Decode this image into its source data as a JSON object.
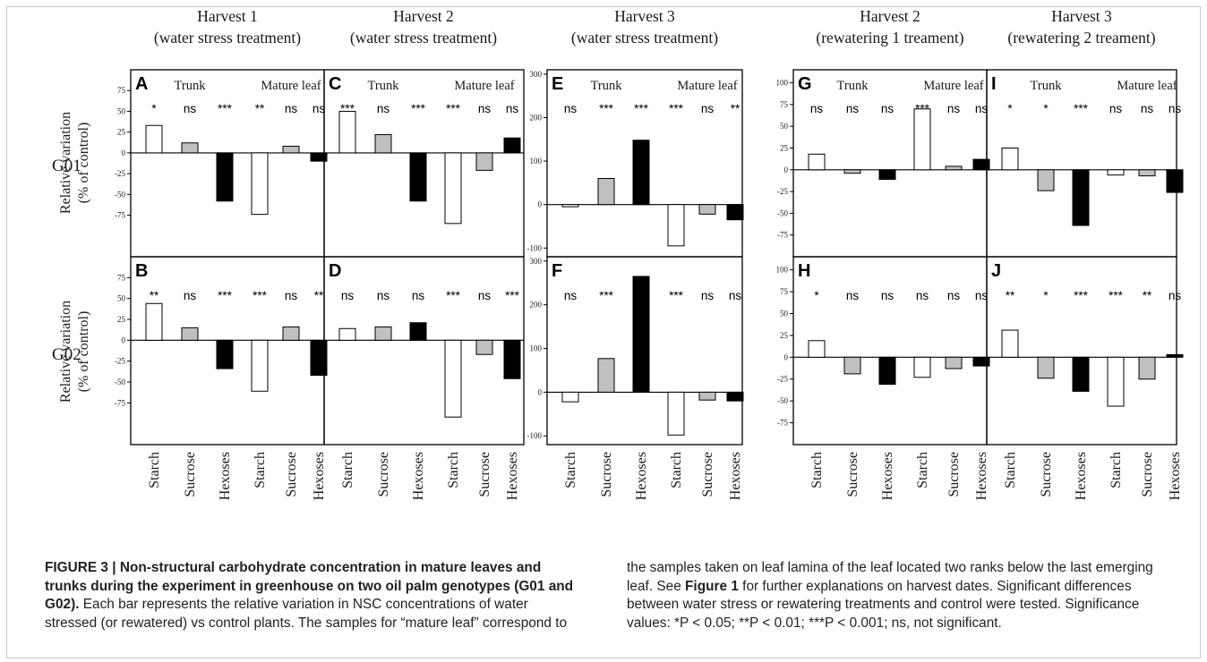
{
  "figure": {
    "column_titles": [
      [
        "Harvest 1",
        "(water stress treatment)"
      ],
      [
        "Harvest 2",
        "(water stress treatment)"
      ],
      [
        "Harvest 3",
        "(water stress treatment)"
      ],
      [
        "Harvest 2",
        "(rewatering 1 treament)"
      ],
      [
        "Harvest 3",
        "(rewatering 2 treament)"
      ]
    ],
    "row_labels": [
      "G01",
      "G02"
    ],
    "y_axis_label": [
      "Relative variation",
      "(% of control)"
    ],
    "group_labels": [
      "Trunk",
      "Mature leaf"
    ],
    "categories": [
      "Starch",
      "Sucrose",
      "Hexoses",
      "Starch",
      "Sucrose",
      "Hexoses"
    ],
    "bar_colors": [
      "#ffffff",
      "#c0c0c0",
      "#000000"
    ]
  },
  "chart_data": [
    {
      "type": "bar",
      "panel": "A",
      "genotype": "G01",
      "harvest": "Harvest 1",
      "treatment": "water stress treatment",
      "ylim": [
        -125,
        100
      ],
      "yticks": [
        -75,
        -50,
        -25,
        0,
        25,
        50,
        75
      ],
      "categories": [
        "Starch",
        "Sucrose",
        "Hexoses",
        "Starch",
        "Sucrose",
        "Hexoses"
      ],
      "groups": [
        "Trunk",
        "Trunk",
        "Trunk",
        "Mature leaf",
        "Mature leaf",
        "Mature leaf"
      ],
      "values": [
        33,
        12,
        -58,
        -74,
        8,
        -10
      ],
      "significance": [
        "*",
        "ns",
        "***",
        "**",
        "ns",
        "ns"
      ]
    },
    {
      "type": "bar",
      "panel": "B",
      "genotype": "G02",
      "harvest": "Harvest 1",
      "treatment": "water stress treatment",
      "ylim": [
        -125,
        100
      ],
      "yticks": [
        -75,
        -50,
        -25,
        0,
        25,
        50,
        75
      ],
      "categories": [
        "Starch",
        "Sucrose",
        "Hexoses",
        "Starch",
        "Sucrose",
        "Hexoses"
      ],
      "groups": [
        "Trunk",
        "Trunk",
        "Trunk",
        "Mature leaf",
        "Mature leaf",
        "Mature leaf"
      ],
      "values": [
        44,
        15,
        -34,
        -61,
        16,
        -42
      ],
      "significance": [
        "**",
        "ns",
        "***",
        "***",
        "ns",
        "**"
      ]
    },
    {
      "type": "bar",
      "panel": "C",
      "genotype": "G01",
      "harvest": "Harvest 2",
      "treatment": "water stress treatment",
      "ylim": [
        -125,
        100
      ],
      "yticks": [
        -75,
        -50,
        -25,
        0,
        25,
        50,
        75
      ],
      "categories": [
        "Starch",
        "Sucrose",
        "Hexoses",
        "Starch",
        "Sucrose",
        "Hexoses"
      ],
      "groups": [
        "Trunk",
        "Trunk",
        "Trunk",
        "Mature leaf",
        "Mature leaf",
        "Mature leaf"
      ],
      "values": [
        50,
        22,
        -58,
        -85,
        -21,
        18
      ],
      "significance": [
        "***",
        "ns",
        "***",
        "***",
        "ns",
        "ns"
      ]
    },
    {
      "type": "bar",
      "panel": "D",
      "genotype": "G02",
      "harvest": "Harvest 2",
      "treatment": "water stress treatment",
      "ylim": [
        -125,
        100
      ],
      "yticks": [
        -75,
        -50,
        -25,
        0,
        25,
        50,
        75
      ],
      "categories": [
        "Starch",
        "Sucrose",
        "Hexoses",
        "Starch",
        "Sucrose",
        "Hexoses"
      ],
      "groups": [
        "Trunk",
        "Trunk",
        "Trunk",
        "Mature leaf",
        "Mature leaf",
        "Mature leaf"
      ],
      "values": [
        14,
        16,
        21,
        -92,
        -17,
        -46
      ],
      "significance": [
        "ns",
        "ns",
        "ns",
        "***",
        "ns",
        "***"
      ]
    },
    {
      "type": "bar",
      "panel": "E",
      "genotype": "G01",
      "harvest": "Harvest 3",
      "treatment": "water stress treatment",
      "ylim": [
        -120,
        310
      ],
      "yticks": [
        -100,
        0,
        100,
        200,
        300
      ],
      "categories": [
        "Starch",
        "Sucrose",
        "Hexoses",
        "Starch",
        "Sucrose",
        "Hexoses"
      ],
      "groups": [
        "Trunk",
        "Trunk",
        "Trunk",
        "Mature leaf",
        "Mature leaf",
        "Mature leaf"
      ],
      "values": [
        -5,
        60,
        148,
        -95,
        -22,
        -35
      ],
      "significance": [
        "ns",
        "***",
        "***",
        "***",
        "ns",
        "**"
      ]
    },
    {
      "type": "bar",
      "panel": "F",
      "genotype": "G02",
      "harvest": "Harvest 3",
      "treatment": "water stress treatment",
      "ylim": [
        -120,
        310
      ],
      "yticks": [
        -100,
        0,
        100,
        200,
        300
      ],
      "categories": [
        "Starch",
        "Sucrose",
        "Hexoses",
        "Starch",
        "Sucrose",
        "Hexoses"
      ],
      "groups": [
        "Trunk",
        "Trunk",
        "Trunk",
        "Mature leaf",
        "Mature leaf",
        "Mature leaf"
      ],
      "values": [
        -22,
        77,
        265,
        -98,
        -18,
        -20
      ],
      "significance": [
        "ns",
        "***",
        "***",
        "***",
        "ns",
        "ns"
      ]
    },
    {
      "type": "bar",
      "panel": "G",
      "genotype": "G01",
      "harvest": "Harvest 2",
      "treatment": "rewatering 1 treament",
      "ylim": [
        -100,
        115
      ],
      "yticks": [
        -75,
        -50,
        -25,
        0,
        25,
        50,
        75,
        100
      ],
      "categories": [
        "Starch",
        "Sucrose",
        "Hexoses",
        "Starch",
        "Sucrose",
        "Hexoses"
      ],
      "groups": [
        "Trunk",
        "Trunk",
        "Trunk",
        "Mature leaf",
        "Mature leaf",
        "Mature leaf"
      ],
      "values": [
        18,
        -4,
        -11,
        70,
        4,
        12
      ],
      "significance": [
        "ns",
        "ns",
        "ns",
        "***",
        "ns",
        "ns"
      ]
    },
    {
      "type": "bar",
      "panel": "H",
      "genotype": "G02",
      "harvest": "Harvest 2",
      "treatment": "rewatering 1 treament",
      "ylim": [
        -100,
        115
      ],
      "yticks": [
        -75,
        -50,
        -25,
        0,
        25,
        50,
        75,
        100
      ],
      "categories": [
        "Starch",
        "Sucrose",
        "Hexoses",
        "Starch",
        "Sucrose",
        "Hexoses"
      ],
      "groups": [
        "Trunk",
        "Trunk",
        "Trunk",
        "Mature leaf",
        "Mature leaf",
        "Mature leaf"
      ],
      "values": [
        19,
        -19,
        -31,
        -23,
        -13,
        -10
      ],
      "significance": [
        "*",
        "ns",
        "ns",
        "ns",
        "ns",
        "ns"
      ]
    },
    {
      "type": "bar",
      "panel": "I",
      "genotype": "G01",
      "harvest": "Harvest 3",
      "treatment": "rewatering 2 treament",
      "ylim": [
        -100,
        115
      ],
      "yticks": [
        -75,
        -50,
        -25,
        0,
        25,
        50,
        75,
        100
      ],
      "categories": [
        "Starch",
        "Sucrose",
        "Hexoses",
        "Starch",
        "Sucrose",
        "Hexoses"
      ],
      "groups": [
        "Trunk",
        "Trunk",
        "Trunk",
        "Mature leaf",
        "Mature leaf",
        "Mature leaf"
      ],
      "values": [
        25,
        -24,
        -64,
        -6,
        -7,
        -26
      ],
      "significance": [
        "*",
        "*",
        "***",
        "ns",
        "ns",
        "ns"
      ]
    },
    {
      "type": "bar",
      "panel": "J",
      "genotype": "G02",
      "harvest": "Harvest 3",
      "treatment": "rewatering 2 treament",
      "ylim": [
        -100,
        115
      ],
      "yticks": [
        -75,
        -50,
        -25,
        0,
        25,
        50,
        75,
        100
      ],
      "categories": [
        "Starch",
        "Sucrose",
        "Hexoses",
        "Starch",
        "Sucrose",
        "Hexoses"
      ],
      "groups": [
        "Trunk",
        "Trunk",
        "Trunk",
        "Mature leaf",
        "Mature leaf",
        "Mature leaf"
      ],
      "values": [
        31,
        -24,
        -39,
        -56,
        -25,
        3
      ],
      "significance": [
        "**",
        "*",
        "***",
        "***",
        "**",
        "ns"
      ]
    }
  ],
  "caption": {
    "label": "FIGURE 3 | Non-structural carbohydrate concentration in mature leaves and trunks during the experiment in greenhouse on two oil palm genotypes (G01 and G02).",
    "text_1": " Each bar represents the relative variation in NSC concentrations of water stressed (or rewatered) vs control plants. The samples for “mature leaf” correspond to the samples taken on leaf lamina of the leaf located two ranks below the last emerging leaf. See ",
    "figure_ref": "Figure 1",
    "text_2": " for further explanations on harvest dates. Significant differences between water stress or rewatering treatments and control were tested. Significance values: *P < 0.05; **P < 0.01; ***P < 0.001; ns, not significant."
  }
}
